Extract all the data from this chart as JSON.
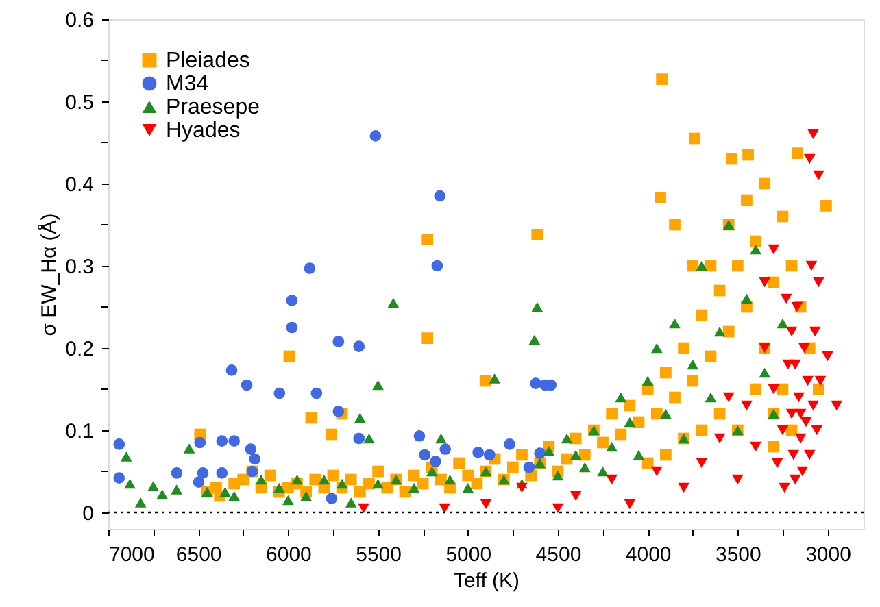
{
  "chart_data": {
    "type": "scatter",
    "xlabel": "Teff (K)",
    "ylabel": "σ EW_Hα (Å)",
    "xlim": [
      7000,
      2800
    ],
    "ylim": [
      -0.02,
      0.6
    ],
    "xticks": [
      7000,
      {
        "value": 6750,
        "label": null
      },
      6500,
      {
        "value": 6250,
        "label": null
      },
      6000,
      {
        "value": 5750,
        "label": null
      },
      5500,
      {
        "value": 5250,
        "label": null
      },
      5000,
      {
        "value": 4750,
        "label": null
      },
      4500,
      {
        "value": 4250,
        "label": null
      },
      4000,
      {
        "value": 3750,
        "label": null
      },
      3500,
      {
        "value": 3250,
        "label": null
      },
      3000
    ],
    "yticks": [
      0,
      {
        "value": 0.05,
        "label": null
      },
      0.1,
      {
        "value": 0.15,
        "label": null
      },
      0.2,
      {
        "value": 0.25,
        "label": null
      },
      0.3,
      {
        "value": 0.35,
        "label": null
      },
      0.4,
      {
        "value": 0.45,
        "label": null
      },
      0.5,
      {
        "value": 0.55,
        "label": null
      },
      0.6
    ],
    "grid": false,
    "legend": "top left",
    "ref_lines": [
      {
        "axis": "y",
        "value": 0,
        "label": null,
        "color": "#000000",
        "line_style": "dotted"
      }
    ],
    "series": [
      {
        "name": "Pleiades",
        "color": "#ffa500",
        "marker": "square",
        "x": [
          6450,
          6400,
          6380,
          6300,
          6250,
          6150,
          6100,
          6050,
          6000,
          5950,
          5900,
          5850,
          5800,
          5750,
          5700,
          5650,
          5600,
          5550,
          5500,
          5450,
          5400,
          5350,
          5300,
          5250,
          5200,
          5150,
          5100,
          5050,
          5000,
          4950,
          4900,
          4850,
          4800,
          4750,
          4700,
          4650,
          4600,
          4550,
          4500,
          4450,
          4400,
          4350,
          4300,
          4250,
          4200,
          4150,
          4100,
          4050,
          4000,
          3950,
          3900,
          3850,
          3800,
          3750,
          3700,
          3650,
          3600,
          3550,
          3500,
          3450,
          3400,
          3350,
          3300,
          3250,
          3200,
          3150,
          3100,
          3050,
          3600,
          3500,
          3400,
          3300,
          3700,
          3800,
          3900,
          4000,
          3650,
          3550,
          3450,
          3750,
          3850,
          3350,
          3250,
          3200,
          3300,
          6490,
          6200,
          5994,
          5872,
          5700,
          5760,
          5225,
          5225,
          4903,
          4615,
          3922,
          3739,
          3930,
          3008,
          3168,
          3442,
          3533
        ],
        "values": [
          0.025,
          0.03,
          0.02,
          0.035,
          0.04,
          0.03,
          0.045,
          0.025,
          0.03,
          0.035,
          0.025,
          0.04,
          0.03,
          0.045,
          0.03,
          0.04,
          0.025,
          0.035,
          0.05,
          0.03,
          0.04,
          0.025,
          0.045,
          0.035,
          0.055,
          0.04,
          0.03,
          0.06,
          0.045,
          0.035,
          0.05,
          0.065,
          0.04,
          0.055,
          0.07,
          0.045,
          0.06,
          0.08,
          0.05,
          0.065,
          0.09,
          0.07,
          0.1,
          0.085,
          0.12,
          0.095,
          0.13,
          0.11,
          0.15,
          0.12,
          0.17,
          0.14,
          0.2,
          0.16,
          0.24,
          0.19,
          0.27,
          0.22,
          0.3,
          0.25,
          0.33,
          0.2,
          0.28,
          0.36,
          0.3,
          0.25,
          0.2,
          0.15,
          0.12,
          0.1,
          0.15,
          0.12,
          0.1,
          0.09,
          0.07,
          0.06,
          0.3,
          0.35,
          0.38,
          0.3,
          0.35,
          0.4,
          0.15,
          0.1,
          0.08,
          0.095,
          0.05,
          0.19,
          0.115,
          0.12,
          0.095,
          0.332,
          0.212,
          0.16,
          0.338,
          0.527,
          0.455,
          0.383,
          0.373,
          0.437,
          0.435,
          0.43
        ]
      },
      {
        "name": "M34",
        "color": "#4169e1",
        "marker": "circle",
        "x": [
          6940,
          6940,
          6314,
          6230,
          6048,
          5979,
          5979,
          5880,
          5842,
          5720,
          5606,
          5514,
          5156,
          5171,
          6490,
          6368,
          6300,
          6208,
          6185,
          6200,
          6497,
          6474,
          6619,
          6368,
          5720,
          5606,
          5758,
          5270,
          5240,
          5126,
          4943,
          4880,
          4768,
          4660,
          4600,
          4623,
          4570,
          4539,
          5180
        ],
        "values": [
          0.083,
          0.042,
          0.173,
          0.155,
          0.145,
          0.258,
          0.225,
          0.297,
          0.145,
          0.208,
          0.202,
          0.458,
          0.385,
          0.3,
          0.085,
          0.087,
          0.087,
          0.077,
          0.065,
          0.05,
          0.037,
          0.048,
          0.048,
          0.048,
          0.123,
          0.09,
          0.017,
          0.093,
          0.07,
          0.077,
          0.073,
          0.07,
          0.083,
          0.055,
          0.072,
          0.157,
          0.155,
          0.155,
          0.062
        ]
      },
      {
        "name": "Praesepe",
        "color": "#228b22",
        "marker": "triangle",
        "x": [
          6900,
          6880,
          6820,
          6750,
          6700,
          6620,
          6550,
          6450,
          6350,
          6300,
          6150,
          6050,
          6000,
          5950,
          5900,
          5800,
          5700,
          5650,
          5600,
          5550,
          5415,
          5500,
          5400,
          5300,
          5200,
          5150,
          5100,
          5000,
          4900,
          4800,
          4700,
          4600,
          4550,
          4500,
          4450,
          4400,
          4350,
          4300,
          4250,
          4200,
          4150,
          4100,
          4050,
          4000,
          3950,
          3900,
          3850,
          3800,
          3750,
          3700,
          3650,
          3600,
          3550,
          3500,
          3450,
          3400,
          3350,
          3300,
          3250,
          4615,
          4630,
          5500,
          4852
        ],
        "values": [
          0.068,
          0.035,
          0.012,
          0.032,
          0.022,
          0.028,
          0.078,
          0.025,
          0.025,
          0.02,
          0.04,
          0.03,
          0.015,
          0.04,
          0.02,
          0.04,
          0.035,
          0.012,
          0.115,
          0.09,
          0.255,
          0.035,
          0.04,
          0.03,
          0.05,
          0.09,
          0.04,
          0.03,
          0.05,
          0.04,
          0.035,
          0.06,
          0.075,
          0.045,
          0.09,
          0.07,
          0.055,
          0.1,
          0.05,
          0.08,
          0.14,
          0.11,
          0.07,
          0.16,
          0.2,
          0.12,
          0.23,
          0.09,
          0.18,
          0.3,
          0.14,
          0.22,
          0.35,
          0.1,
          0.26,
          0.32,
          0.17,
          0.12,
          0.23,
          0.25,
          0.21,
          0.155,
          0.163
        ]
      },
      {
        "name": "Hyades",
        "color": "#ff0000",
        "marker": "triangle-down",
        "x": [
          5580,
          5130,
          4900,
          4700,
          4500,
          4400,
          4200,
          4100,
          3950,
          3800,
          3700,
          3600,
          3500,
          3450,
          3400,
          3350,
          3300,
          3280,
          3250,
          3240,
          3220,
          3200,
          3190,
          3180,
          3170,
          3160,
          3150,
          3140,
          3130,
          3120,
          3110,
          3100,
          3090,
          3080,
          3070,
          3060,
          3050,
          3040,
          3000,
          2950,
          3100,
          3080,
          3050,
          3200,
          3180,
          3150,
          3230,
          3350,
          3300,
          3550
        ],
        "values": [
          0.005,
          0.005,
          0.01,
          0.03,
          0.005,
          0.02,
          0.04,
          0.01,
          0.05,
          0.03,
          0.06,
          0.09,
          0.04,
          0.13,
          0.08,
          0.2,
          0.15,
          0.06,
          0.1,
          0.03,
          0.18,
          0.12,
          0.07,
          0.04,
          0.25,
          0.14,
          0.09,
          0.05,
          0.2,
          0.11,
          0.16,
          0.07,
          0.3,
          0.13,
          0.22,
          0.1,
          0.28,
          0.16,
          0.19,
          0.13,
          0.43,
          0.46,
          0.41,
          0.22,
          0.18,
          0.12,
          0.26,
          0.28,
          0.32,
          0.14
        ]
      }
    ]
  }
}
